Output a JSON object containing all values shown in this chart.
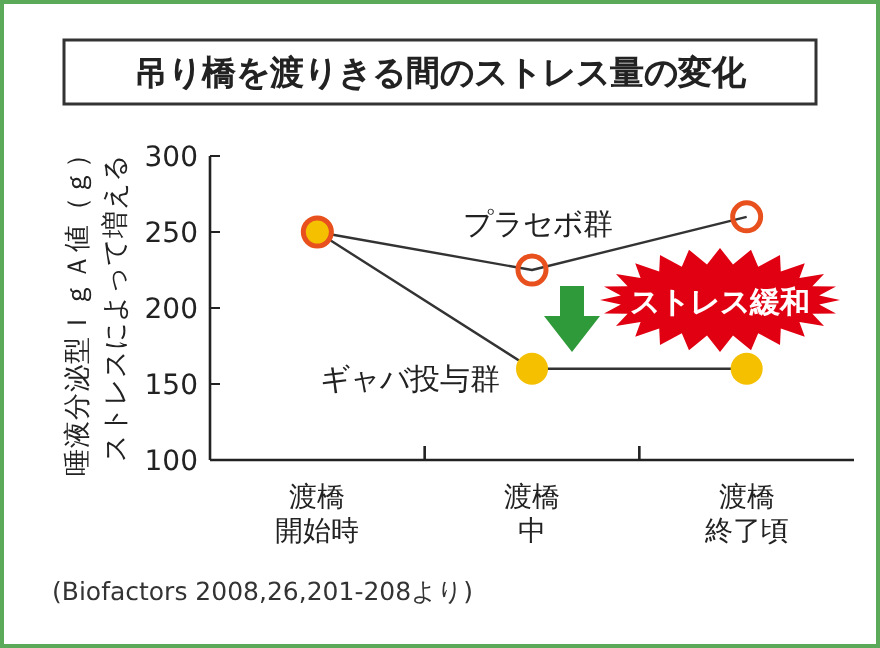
{
  "chart_data": {
    "type": "line",
    "title": "吊り橋を渡りきる間のストレス量の変化",
    "ylabel": "ストレスによって増える唾液分泌型ＩｇＡ値（ｇ）",
    "categories": [
      "渡橋開始時",
      "渡橋中",
      "渡橋終了頃"
    ],
    "series": [
      {
        "name": "プラセボ群",
        "color": "#e8501e",
        "values": [
          250,
          225,
          260
        ]
      },
      {
        "name": "ギャバ投与群",
        "color": "#f5c000",
        "values": [
          250,
          160,
          160
        ]
      }
    ],
    "ylim": [
      100,
      300
    ],
    "yticks": [
      100,
      150,
      200,
      250,
      300
    ],
    "marker": "circle",
    "annotations": [
      "ストレス緩和",
      "(Biofactors 2008,26,201-208より)"
    ]
  }
}
